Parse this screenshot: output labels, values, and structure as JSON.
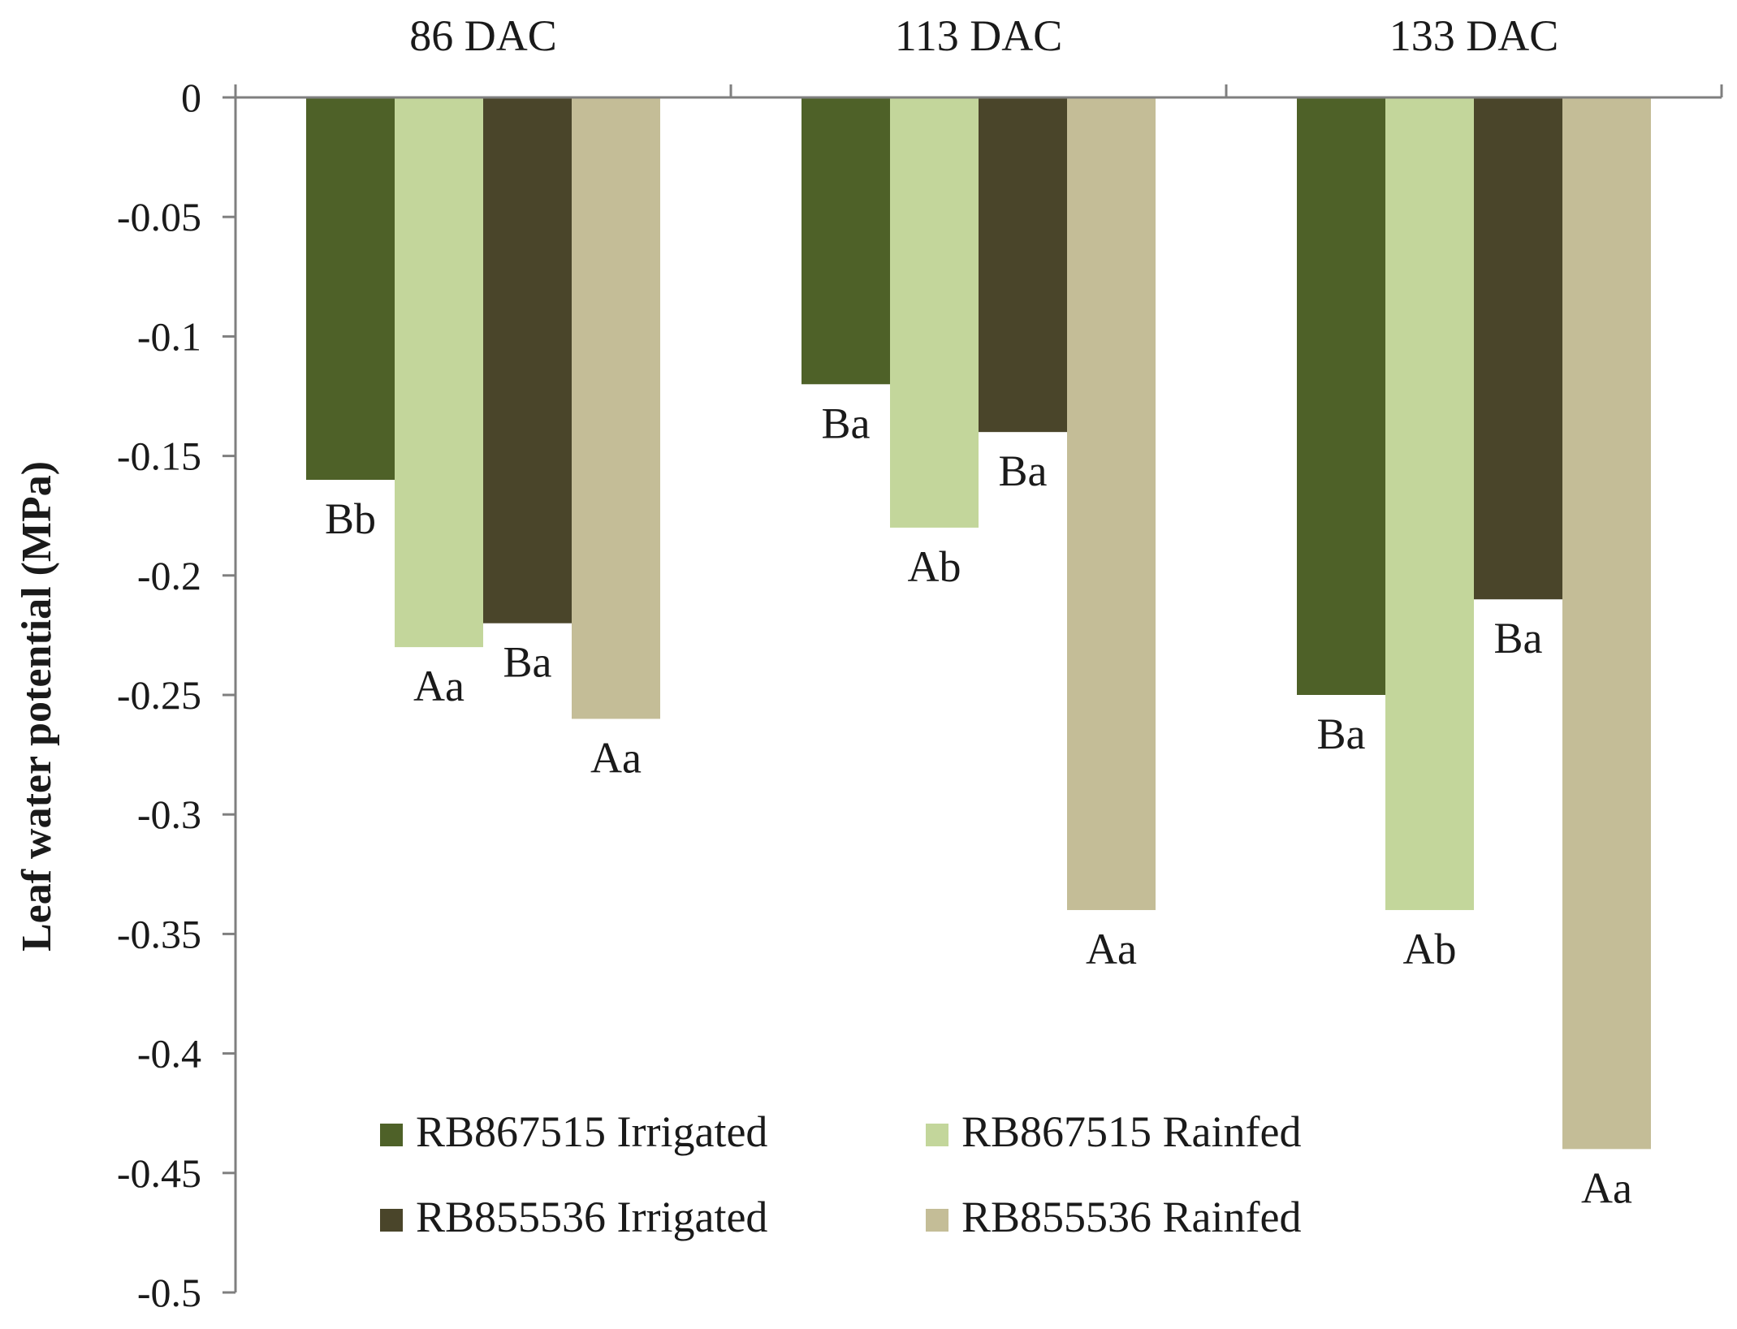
{
  "chart_data": {
    "type": "bar",
    "categories": [
      "86 DAC",
      "113 DAC",
      "133 DAC"
    ],
    "ylabel": "Leaf water potential (MPa)",
    "xlabel": "",
    "ylim": [
      -0.5,
      0
    ],
    "yticks": [
      "0",
      "-0.05",
      "-0.1",
      "-0.15",
      "-0.2",
      "-0.25",
      "-0.3",
      "-0.35",
      "-0.4",
      "-0.45",
      "-0.5"
    ],
    "category_axis_position": "top",
    "grid": false,
    "legend_position": "bottom-center",
    "series": [
      {
        "name": "RB867515 Irrigated",
        "color": "#4e6128",
        "values": [
          -0.16,
          -0.12,
          -0.25
        ],
        "labels": [
          "Bb",
          "Ba",
          "Ba"
        ]
      },
      {
        "name": "RB867515 Rainfed",
        "color": "#c3d69b",
        "values": [
          -0.23,
          -0.18,
          -0.34
        ],
        "labels": [
          "Aa",
          "Ab",
          "Ab"
        ]
      },
      {
        "name": "RB855536 Irrigated",
        "color": "#4a452a",
        "values": [
          -0.22,
          -0.14,
          -0.21
        ],
        "labels": [
          "Ba",
          "Ba",
          "Ba"
        ]
      },
      {
        "name": "RB855536 Rainfed",
        "color": "#c4bd97",
        "values": [
          -0.26,
          -0.34,
          -0.44
        ],
        "labels": [
          "Aa",
          "Aa",
          "Aa"
        ]
      }
    ]
  }
}
